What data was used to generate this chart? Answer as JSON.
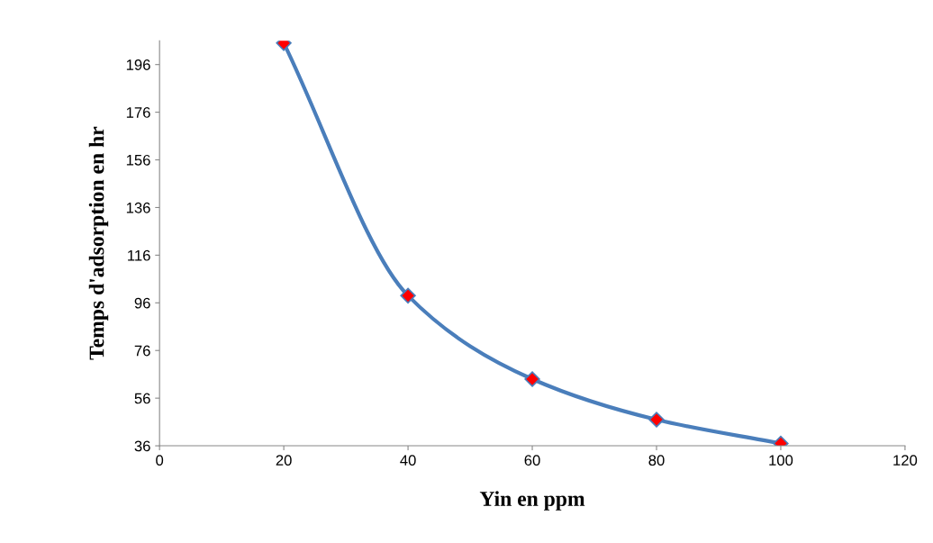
{
  "chart_data": {
    "type": "line",
    "xlabel": "Yin en ppm",
    "ylabel": "Temps d'adsorption en hr",
    "x": [
      20,
      40,
      60,
      80,
      100
    ],
    "series": [
      {
        "color": "#4a7ebb",
        "values": [
          205,
          99,
          64,
          47,
          37
        ]
      }
    ],
    "marker": "diamond",
    "grid": false,
    "legend": false,
    "xlim": [
      0,
      120
    ],
    "xticks": [
      0,
      20,
      40,
      60,
      80,
      100,
      120
    ],
    "ylim": [
      36,
      206
    ],
    "yticks": [
      36,
      56,
      76,
      96,
      116,
      136,
      156,
      176,
      196
    ]
  }
}
